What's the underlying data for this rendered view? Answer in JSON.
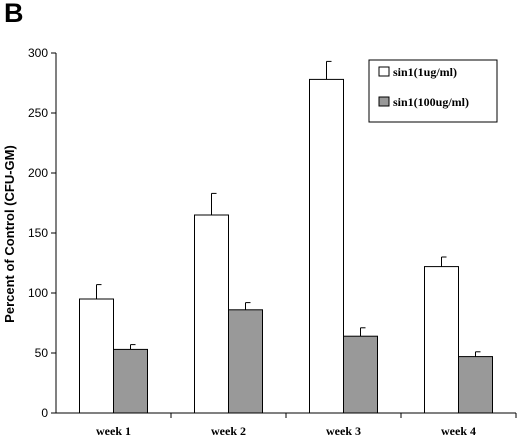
{
  "panel_label": "B",
  "chart_data": {
    "type": "bar",
    "title": "",
    "xlabel": "",
    "ylabel": "Percent of Control (CFU-GM)",
    "ylim": [
      0,
      300
    ],
    "yticks": [
      0,
      50,
      100,
      150,
      200,
      250,
      300
    ],
    "categories": [
      "week 1",
      "week 2",
      "week 3",
      "week 4"
    ],
    "series": [
      {
        "name": "sin1(1ug/ml)",
        "color": "#ffffff",
        "values": [
          95,
          165,
          278,
          122
        ],
        "errors": [
          12,
          18,
          15,
          8
        ]
      },
      {
        "name": "sin1(100ug/ml)",
        "color": "#999999",
        "values": [
          53,
          86,
          64,
          47
        ],
        "errors": [
          4,
          6,
          7,
          4
        ]
      }
    ],
    "legend_position": "top-right",
    "grid": false
  }
}
